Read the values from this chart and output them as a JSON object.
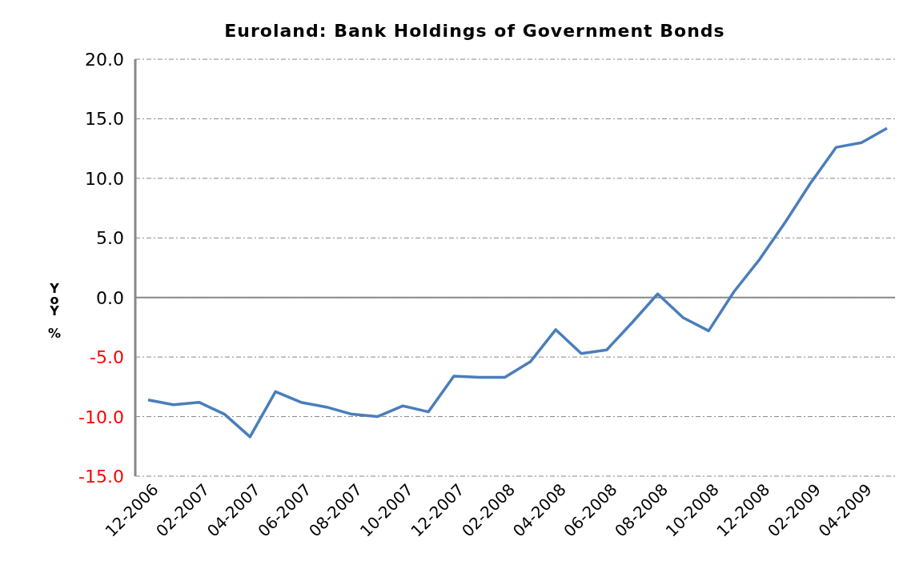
{
  "chart_data": {
    "type": "line",
    "title": "Euroland: Bank Holdings of Government Bonds",
    "ylabel": "YoY %",
    "categories": [
      "12-2006",
      null,
      "02-2007",
      null,
      "04-2007",
      null,
      "06-2007",
      null,
      "08-2007",
      null,
      "10-2007",
      null,
      "12-2007",
      null,
      "02-2008",
      null,
      "04-2008",
      null,
      "06-2008",
      null,
      "08-2008",
      null,
      "10-2008",
      null,
      "12-2008",
      null,
      "02-2009",
      null,
      "04-2009",
      null
    ],
    "series": [
      {
        "color": "#4a7ebb",
        "values": [
          -8.6,
          -9.0,
          -8.8,
          -9.8,
          -11.7,
          -7.9,
          -8.8,
          -9.2,
          -9.8,
          -10.0,
          -9.1,
          -9.6,
          -6.6,
          -6.7,
          -6.7,
          -5.4,
          -2.7,
          -4.7,
          -4.4,
          -2.1,
          0.3,
          -1.7,
          -2.8,
          0.5,
          3.2,
          6.3,
          9.6,
          12.6,
          13.0,
          14.2
        ]
      }
    ],
    "ylim": [
      -15,
      20
    ],
    "yticks": [
      {
        "value": -15,
        "label": "-15.0"
      },
      {
        "value": -10,
        "label": "-10.0"
      },
      {
        "value": -5,
        "label": "-5.0"
      },
      {
        "value": 0,
        "label": "0.0"
      },
      {
        "value": 5,
        "label": "5.0"
      },
      {
        "value": 10,
        "label": "10.0"
      },
      {
        "value": 15,
        "label": "15.0"
      },
      {
        "value": 20,
        "label": "20.0"
      }
    ],
    "ref_lines": [
      {
        "axis": "y",
        "value": 0
      }
    ],
    "grid": "y",
    "legend": false,
    "marker": "none",
    "line_style": "solid"
  }
}
